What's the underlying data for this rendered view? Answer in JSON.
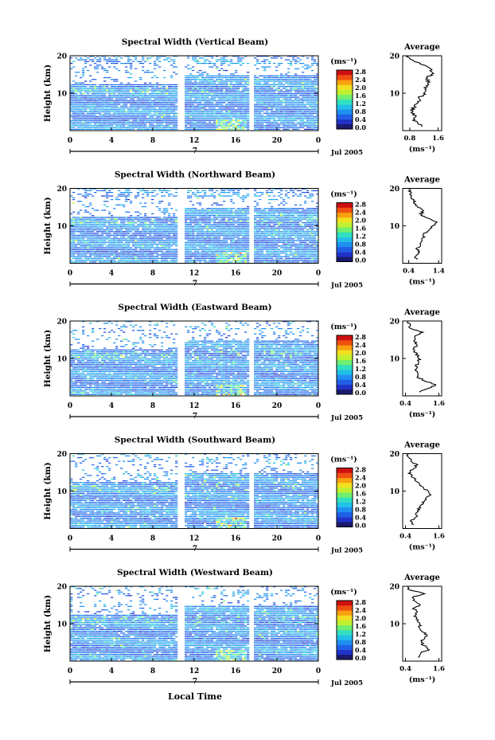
{
  "figure": {
    "xlabel": "Local Time",
    "date_label": "Jul 2005",
    "day_label": "7",
    "colorbar_unit": "(ms⁻¹)",
    "colorbar_ticks": [
      "0.0",
      "0.4",
      "0.8",
      "1.2",
      "1.6",
      "2.0",
      "2.4",
      "2.8"
    ],
    "avg_title": "Average",
    "avg_xlabel": "(ms⁻¹)",
    "colormap": [
      "#1a1a6e",
      "#2033c8",
      "#1f5fe8",
      "#1e90f0",
      "#20c0e8",
      "#30e0c0",
      "#70f070",
      "#c0f030",
      "#f0e020",
      "#f8a010",
      "#f05010",
      "#d01010"
    ]
  },
  "chart_data": [
    {
      "type": "heatmap",
      "title": "Spectral Width (Vertical Beam)",
      "xlabel": "Local Time",
      "ylabel": "Height (km)",
      "xlim": [
        0,
        24
      ],
      "ylim": [
        0,
        20
      ],
      "x_ticks": [
        "0",
        "4",
        "8",
        "12",
        "16",
        "20",
        "0"
      ],
      "y_ticks": [
        "10",
        "20"
      ],
      "data_gaps_hours": [
        [
          10.5,
          11.1
        ],
        [
          17.3,
          17.7
        ]
      ],
      "colorbar_range": [
        0.0,
        2.8
      ],
      "profile": {
        "title": "Average",
        "xlabel": "(ms⁻¹)",
        "x_ticks": [
          "0.8",
          "1.6"
        ],
        "xlim": [
          0.6,
          1.7
        ],
        "heights_km": [
          1,
          2,
          3,
          4,
          5,
          6,
          7,
          8,
          9,
          10,
          11,
          12,
          13,
          14,
          15,
          16,
          17,
          18,
          19,
          20
        ],
        "values": [
          1.15,
          1.05,
          0.9,
          0.95,
          0.85,
          0.9,
          1.0,
          1.05,
          1.1,
          1.25,
          1.2,
          1.3,
          1.35,
          1.25,
          1.45,
          1.4,
          1.3,
          1.1,
          0.8,
          0.75
        ]
      }
    },
    {
      "type": "heatmap",
      "title": "Spectral Width (Northward Beam)",
      "xlabel": "Local Time",
      "ylabel": "Height (km)",
      "xlim": [
        0,
        24
      ],
      "ylim": [
        0,
        20
      ],
      "x_ticks": [
        "0",
        "4",
        "8",
        "12",
        "16",
        "20",
        "0"
      ],
      "y_ticks": [
        "10",
        "20"
      ],
      "data_gaps_hours": [
        [
          10.5,
          11.1
        ],
        [
          17.3,
          17.7
        ]
      ],
      "colorbar_range": [
        0.0,
        2.8
      ],
      "profile": {
        "title": "Average",
        "xlabel": "(ms⁻¹)",
        "x_ticks": [
          "0.4",
          "1.4"
        ],
        "xlim": [
          0.2,
          1.5
        ],
        "heights_km": [
          1,
          2,
          3,
          4,
          5,
          6,
          7,
          8,
          9,
          10,
          11,
          12,
          13,
          14,
          15,
          16,
          17,
          18,
          19,
          20
        ],
        "values": [
          0.7,
          0.6,
          0.75,
          0.7,
          0.8,
          0.85,
          0.9,
          0.95,
          1.05,
          1.2,
          1.35,
          1.0,
          0.8,
          0.9,
          0.75,
          0.6,
          0.55,
          0.5,
          0.45,
          0.4
        ]
      }
    },
    {
      "type": "heatmap",
      "title": "Spectral Width (Eastward Beam)",
      "xlabel": "Local Time",
      "ylabel": "Height (km)",
      "xlim": [
        0,
        24
      ],
      "ylim": [
        0,
        20
      ],
      "x_ticks": [
        "0",
        "4",
        "8",
        "12",
        "16",
        "20",
        "0"
      ],
      "y_ticks": [
        "10",
        "20"
      ],
      "data_gaps_hours": [
        [
          10.5,
          11.1
        ],
        [
          17.3,
          17.7
        ]
      ],
      "colorbar_range": [
        0.0,
        2.8
      ],
      "profile": {
        "title": "Average",
        "xlabel": "(ms⁻¹)",
        "x_ticks": [
          "0.4",
          "1.6"
        ],
        "xlim": [
          0.3,
          1.7
        ],
        "heights_km": [
          1,
          2,
          3,
          4,
          5,
          6,
          7,
          8,
          9,
          10,
          11,
          12,
          13,
          14,
          15,
          16,
          17,
          18,
          19,
          20
        ],
        "values": [
          0.9,
          1.2,
          1.5,
          1.1,
          0.85,
          0.8,
          0.75,
          0.8,
          0.85,
          0.9,
          0.8,
          0.7,
          0.75,
          0.8,
          0.7,
          0.75,
          1.0,
          0.6,
          0.55,
          0.5
        ]
      }
    },
    {
      "type": "heatmap",
      "title": "Spectral Width (Southward Beam)",
      "xlabel": "Local Time",
      "ylabel": "Height (km)",
      "xlim": [
        0,
        24
      ],
      "ylim": [
        0,
        20
      ],
      "x_ticks": [
        "0",
        "4",
        "8",
        "12",
        "16",
        "20",
        "0"
      ],
      "y_ticks": [
        "10",
        "20"
      ],
      "data_gaps_hours": [
        [
          10.5,
          11.1
        ],
        [
          17.3,
          17.7
        ]
      ],
      "colorbar_range": [
        0.0,
        2.8
      ],
      "profile": {
        "title": "Average",
        "xlabel": "(ms⁻¹)",
        "x_ticks": [
          "0.4",
          "1.6"
        ],
        "xlim": [
          0.3,
          1.7
        ],
        "heights_km": [
          1,
          2,
          3,
          4,
          5,
          6,
          7,
          8,
          9,
          10,
          11,
          12,
          13,
          14,
          15,
          16,
          17,
          18,
          19,
          20
        ],
        "values": [
          0.7,
          0.6,
          0.8,
          0.75,
          0.85,
          0.95,
          1.05,
          1.15,
          1.3,
          1.2,
          1.0,
          0.9,
          0.75,
          0.6,
          0.55,
          0.7,
          0.8,
          0.6,
          0.5,
          0.45
        ]
      }
    },
    {
      "type": "heatmap",
      "title": "Spectral Width (Westward Beam)",
      "xlabel": "Local Time",
      "ylabel": "Height (km)",
      "xlim": [
        0,
        24
      ],
      "ylim": [
        0,
        20
      ],
      "x_ticks": [
        "0",
        "4",
        "8",
        "12",
        "16",
        "20",
        "0"
      ],
      "y_ticks": [
        "10",
        "20"
      ],
      "data_gaps_hours": [
        [
          10.5,
          11.1
        ],
        [
          17.3,
          17.7
        ]
      ],
      "colorbar_range": [
        0.0,
        2.8
      ],
      "profile": {
        "title": "Average",
        "xlabel": "(ms⁻¹)",
        "x_ticks": [
          "0.4",
          "1.6"
        ],
        "xlim": [
          0.3,
          1.7
        ],
        "heights_km": [
          1,
          2,
          3,
          4,
          5,
          6,
          7,
          8,
          9,
          10,
          11,
          12,
          13,
          14,
          15,
          16,
          17,
          18,
          19,
          20
        ],
        "values": [
          0.85,
          0.9,
          1.2,
          1.1,
          0.95,
          1.05,
          1.15,
          1.0,
          0.9,
          0.95,
          0.85,
          0.75,
          0.8,
          0.7,
          0.9,
          0.75,
          0.6,
          1.1,
          0.55,
          0.5
        ]
      }
    }
  ]
}
